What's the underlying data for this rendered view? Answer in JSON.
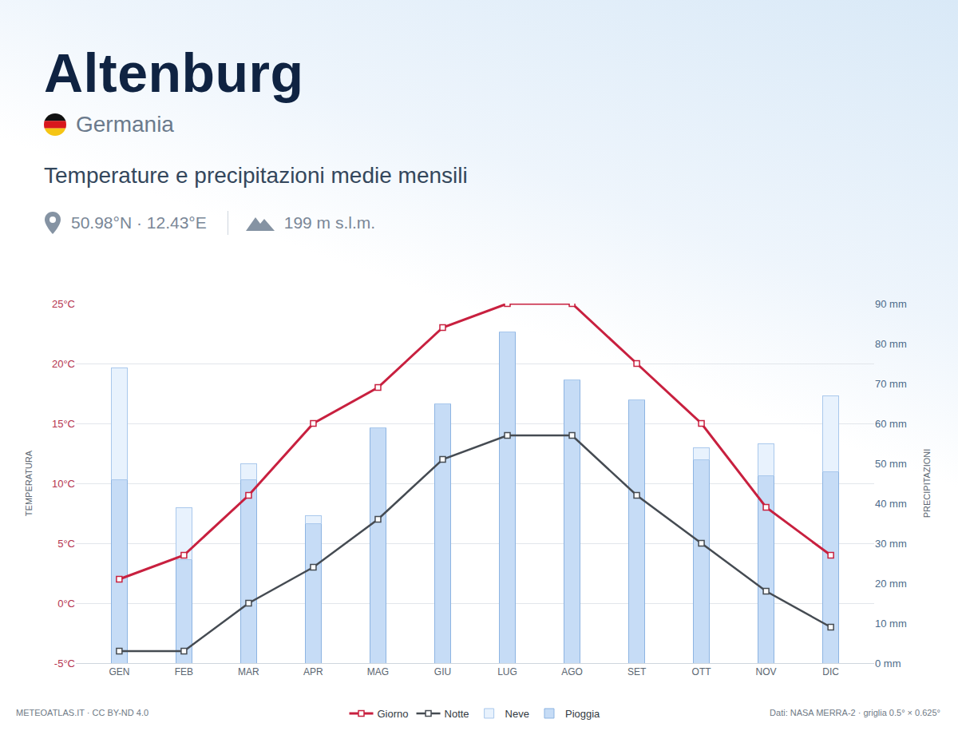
{
  "chart_data": {
    "type": "bar",
    "title": "Altenburg",
    "subtitle": "Germania",
    "annotations": [
      "Temperature e precipitazioni medie mensili",
      "50.98°N · 12.43°E",
      "199 m s.l.m.",
      "METEOATLAS.IT · CC BY-ND 4.0",
      "Dati: NASA MERRA-2 · griglia 0.5° × 0.625°"
    ],
    "ylabel": "TEMPERATURA",
    "y2label": "PRECIPITAZIONI",
    "categories": [
      "GEN",
      "FEB",
      "MAR",
      "APR",
      "MAG",
      "GIU",
      "LUG",
      "AGO",
      "SET",
      "OTT",
      "NOV",
      "DIC"
    ],
    "series": [
      {
        "name": "Giorno",
        "type": "line",
        "color": "#c8203f",
        "marker": "square",
        "values": [
          2,
          4,
          9,
          15,
          18,
          23,
          25,
          25,
          20,
          15,
          8,
          4
        ]
      },
      {
        "name": "Notte",
        "type": "line",
        "color": "#454b52",
        "marker": "square",
        "values": [
          -4,
          -4,
          0,
          3,
          7,
          12,
          14,
          14,
          9,
          5,
          1,
          -2
        ]
      },
      {
        "name": "Neve",
        "type": "bar",
        "axis": "y2",
        "color": "#e8f2fd",
        "values": [
          28,
          13,
          4,
          2,
          0,
          0,
          0,
          0,
          0,
          3,
          8,
          19
        ]
      },
      {
        "name": "Pioggia",
        "type": "bar",
        "axis": "y2",
        "color": "#c6dcf6",
        "values": [
          46,
          26,
          46,
          35,
          59,
          65,
          83,
          71,
          66,
          51,
          47,
          48
        ]
      }
    ],
    "stacked": true,
    "ylim": [
      -5,
      25
    ],
    "yticks": [
      {
        "value": -5,
        "label": "-5°C"
      },
      {
        "value": 0,
        "label": "0°C"
      },
      {
        "value": 5,
        "label": "5°C"
      },
      {
        "value": 10,
        "label": "10°C"
      },
      {
        "value": 15,
        "label": "15°C"
      },
      {
        "value": 20,
        "label": "20°C"
      },
      {
        "value": 25,
        "label": "25°C"
      }
    ],
    "y2lim": [
      0,
      90
    ],
    "y2ticks": [
      {
        "value": 0,
        "label": "0 mm"
      },
      {
        "value": 10,
        "label": "10 mm"
      },
      {
        "value": 20,
        "label": "20 mm"
      },
      {
        "value": 30,
        "label": "30 mm"
      },
      {
        "value": 40,
        "label": "40 mm"
      },
      {
        "value": 50,
        "label": "50 mm"
      },
      {
        "value": 60,
        "label": "60 mm"
      },
      {
        "value": 70,
        "label": "70 mm"
      },
      {
        "value": 80,
        "label": "80 mm"
      },
      {
        "value": 90,
        "label": "90 mm"
      }
    ],
    "grid": true,
    "legend": "bottom"
  }
}
